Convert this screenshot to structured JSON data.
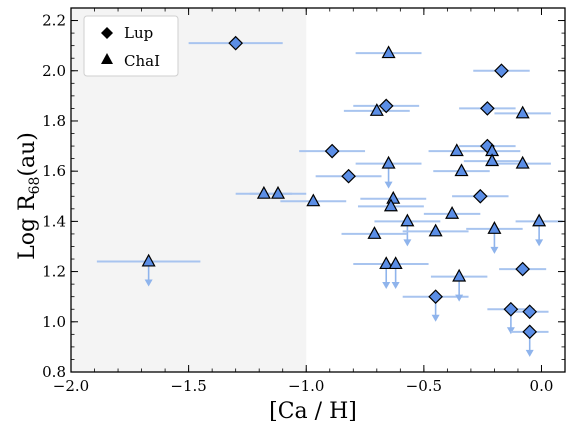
{
  "chart_data": {
    "type": "scatter",
    "xlabel": "[Ca / H]",
    "ylabel": "Log R",
    "ylabel_subscript": "68",
    "ylabel_unit": "(au)",
    "xlim": [
      -2.0,
      0.1
    ],
    "ylim": [
      0.8,
      2.25
    ],
    "x_ticks": [
      -2.0,
      -1.5,
      -1.0,
      -0.5,
      0.0
    ],
    "x_tick_labels": [
      "−2.0",
      "−1.5",
      "−1.0",
      "−0.5",
      "0.0"
    ],
    "y_ticks": [
      0.8,
      1.0,
      1.2,
      1.4,
      1.6,
      1.8,
      2.0,
      2.2
    ],
    "y_tick_labels": [
      "0.8",
      "1.0",
      "1.2",
      "1.4",
      "1.6",
      "1.8",
      "2.0",
      "2.2"
    ],
    "shaded_region": {
      "x": [
        -2.0,
        -1.0
      ],
      "color": "#f4f4f4"
    },
    "grid": false,
    "legend": {
      "placement": "top-left"
    },
    "colors": {
      "marker_fill": "#5b8ee6",
      "marker_edge": "#000000",
      "errorbar": "#a8c4ef",
      "upper_limit_arrow": "#8fb4ec"
    },
    "series": [
      {
        "name": "Lup",
        "marker": "diamond",
        "points": [
          {
            "x": -1.3,
            "y": 2.11,
            "xerr": 0.2,
            "upper": false
          },
          {
            "x": -0.17,
            "y": 2.0,
            "xerr": 0.12,
            "upper": false
          },
          {
            "x": -0.66,
            "y": 1.86,
            "xerr": 0.14,
            "upper": false
          },
          {
            "x": -0.23,
            "y": 1.85,
            "xerr": 0.12,
            "upper": false
          },
          {
            "x": -0.89,
            "y": 1.68,
            "xerr": 0.14,
            "upper": false
          },
          {
            "x": -0.23,
            "y": 1.7,
            "xerr": 0.12,
            "upper": false
          },
          {
            "x": -0.82,
            "y": 1.58,
            "xerr": 0.14,
            "upper": false
          },
          {
            "x": -0.26,
            "y": 1.5,
            "xerr": 0.12,
            "upper": false
          },
          {
            "x": -0.08,
            "y": 1.21,
            "xerr": 0.1,
            "upper": false
          },
          {
            "x": -0.45,
            "y": 1.1,
            "xerr": 0.14,
            "upper": true
          },
          {
            "x": -0.13,
            "y": 1.05,
            "xerr": 0.1,
            "upper": true
          },
          {
            "x": -0.05,
            "y": 1.04,
            "xerr": 0.08,
            "upper": false
          },
          {
            "x": -0.05,
            "y": 0.96,
            "xerr": 0.08,
            "upper": true
          }
        ]
      },
      {
        "name": "ChaI",
        "marker": "triangle",
        "points": [
          {
            "x": -0.65,
            "y": 2.07,
            "xerr": 0.14,
            "upper": false
          },
          {
            "x": -0.7,
            "y": 1.84,
            "xerr": 0.14,
            "upper": false
          },
          {
            "x": -0.08,
            "y": 1.83,
            "xerr": 0.12,
            "upper": false
          },
          {
            "x": -0.36,
            "y": 1.68,
            "xerr": 0.12,
            "upper": false
          },
          {
            "x": -0.21,
            "y": 1.68,
            "xerr": 0.12,
            "upper": false
          },
          {
            "x": -0.21,
            "y": 1.64,
            "xerr": 0.12,
            "upper": false
          },
          {
            "x": -0.08,
            "y": 1.63,
            "xerr": 0.12,
            "upper": false
          },
          {
            "x": -0.65,
            "y": 1.63,
            "xerr": 0.14,
            "upper": true
          },
          {
            "x": -0.34,
            "y": 1.6,
            "xerr": 0.12,
            "upper": false
          },
          {
            "x": -1.18,
            "y": 1.51,
            "xerr": 0.12,
            "upper": false
          },
          {
            "x": -1.12,
            "y": 1.51,
            "xerr": 0.12,
            "upper": false
          },
          {
            "x": -0.63,
            "y": 1.49,
            "xerr": 0.14,
            "upper": false
          },
          {
            "x": -0.97,
            "y": 1.48,
            "xerr": 0.14,
            "upper": false
          },
          {
            "x": -0.64,
            "y": 1.46,
            "xerr": 0.14,
            "upper": false
          },
          {
            "x": -0.38,
            "y": 1.43,
            "xerr": 0.12,
            "upper": false
          },
          {
            "x": -0.57,
            "y": 1.4,
            "xerr": 0.14,
            "upper": true
          },
          {
            "x": -0.01,
            "y": 1.4,
            "xerr": 0.1,
            "upper": true
          },
          {
            "x": -0.45,
            "y": 1.36,
            "xerr": 0.14,
            "upper": false
          },
          {
            "x": -0.2,
            "y": 1.37,
            "xerr": 0.12,
            "upper": true
          },
          {
            "x": -0.71,
            "y": 1.35,
            "xerr": 0.14,
            "upper": false
          },
          {
            "x": -1.67,
            "y": 1.24,
            "xerr": 0.22,
            "upper": true
          },
          {
            "x": -0.66,
            "y": 1.23,
            "xerr": 0.14,
            "upper": true
          },
          {
            "x": -0.62,
            "y": 1.23,
            "xerr": 0.14,
            "upper": true
          },
          {
            "x": -0.35,
            "y": 1.18,
            "xerr": 0.12,
            "upper": true
          }
        ]
      }
    ]
  }
}
